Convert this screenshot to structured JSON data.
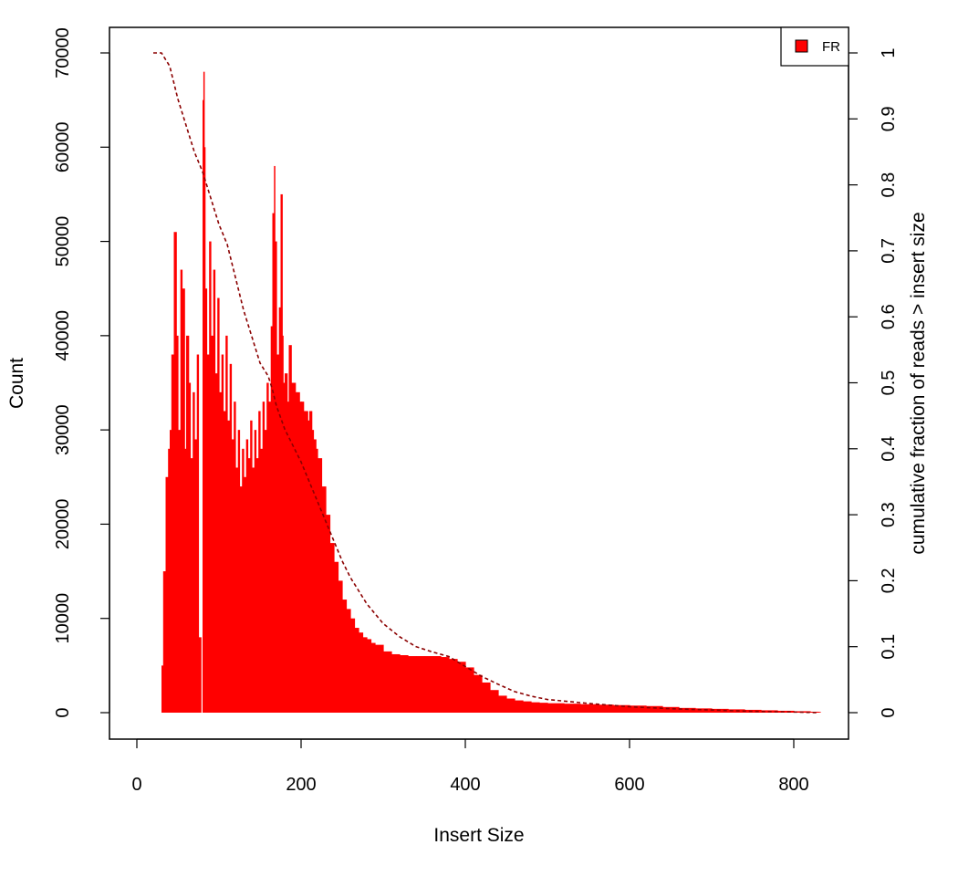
{
  "chart_data": {
    "type": "bar",
    "title": "",
    "xlabel": "Insert Size",
    "ylabel": "Count",
    "y2label": "cumulative fraction of reads > insert size",
    "xlim": [
      0,
      830
    ],
    "ylim": [
      0,
      70000
    ],
    "y2lim": [
      0,
      1
    ],
    "x_ticks": [
      0,
      200,
      400,
      600,
      800
    ],
    "y_ticks": [
      0,
      10000,
      20000,
      30000,
      40000,
      50000,
      60000,
      70000
    ],
    "y2_ticks": [
      0,
      0.1,
      0.2,
      0.3,
      0.4,
      0.5,
      0.6,
      0.7,
      0.8,
      0.9,
      1
    ],
    "grid": false,
    "legend_position": "top-right",
    "colors": {
      "bars": "#ff0000",
      "cumulative_line": "#8b0000",
      "axes": "#000000"
    },
    "series": [
      {
        "name": "FR",
        "kind": "histogram",
        "x": [
          20,
          25,
          30,
          32,
          35,
          38,
          40,
          42,
          45,
          48,
          50,
          53,
          55,
          58,
          60,
          63,
          65,
          68,
          70,
          73,
          75,
          78,
          80,
          81,
          82,
          83,
          85,
          88,
          90,
          93,
          95,
          98,
          100,
          103,
          105,
          108,
          110,
          113,
          115,
          118,
          120,
          123,
          125,
          128,
          130,
          133,
          135,
          138,
          140,
          143,
          145,
          148,
          150,
          153,
          155,
          158,
          160,
          163,
          165,
          167,
          168,
          170,
          173,
          175,
          177,
          178,
          180,
          183,
          185,
          188,
          190,
          193,
          195,
          198,
          200,
          203,
          205,
          208,
          210,
          213,
          215,
          218,
          220,
          225,
          230,
          235,
          240,
          245,
          250,
          255,
          260,
          265,
          270,
          275,
          280,
          285,
          290,
          300,
          310,
          320,
          330,
          340,
          350,
          360,
          370,
          380,
          390,
          400,
          410,
          420,
          430,
          440,
          450,
          460,
          470,
          480,
          490,
          500,
          520,
          540,
          560,
          580,
          600,
          620,
          640,
          660,
          680,
          700,
          720,
          740,
          760,
          780,
          800,
          820,
          830
        ],
        "values": [
          0,
          0,
          5000,
          15000,
          25000,
          28000,
          30000,
          38000,
          51000,
          40000,
          30000,
          47000,
          45000,
          28000,
          40000,
          35000,
          27000,
          34000,
          29000,
          38000,
          8000,
          0,
          65000,
          68000,
          60000,
          45000,
          38000,
          50000,
          40000,
          47000,
          36000,
          44000,
          34000,
          38000,
          32000,
          40000,
          31000,
          37000,
          29000,
          33000,
          26000,
          30000,
          24000,
          28000,
          25000,
          29000,
          27000,
          31000,
          26000,
          30000,
          27000,
          32000,
          28000,
          33000,
          30000,
          35000,
          33000,
          41000,
          53000,
          58000,
          50000,
          38000,
          43000,
          55000,
          40000,
          35000,
          36000,
          33000,
          39000,
          35000,
          35000,
          34000,
          34000,
          33000,
          33000,
          32000,
          32000,
          31000,
          32000,
          30000,
          29000,
          28000,
          27000,
          24000,
          21000,
          18000,
          16000,
          14000,
          12000,
          11000,
          10000,
          9000,
          8500,
          8000,
          7800,
          7400,
          7200,
          6500,
          6200,
          6100,
          6000,
          6000,
          6000,
          6000,
          5900,
          5700,
          5400,
          4800,
          4000,
          3200,
          2400,
          1800,
          1500,
          1300,
          1200,
          1100,
          1050,
          1000,
          950,
          900,
          850,
          800,
          750,
          700,
          600,
          500,
          450,
          400,
          350,
          300,
          250,
          200,
          150,
          100,
          80
        ]
      },
      {
        "name": "cumulative fraction of reads > insert size",
        "kind": "line",
        "axis": "right",
        "x": [
          20,
          30,
          40,
          50,
          60,
          70,
          80,
          90,
          100,
          110,
          120,
          130,
          140,
          150,
          160,
          165,
          170,
          180,
          190,
          200,
          210,
          220,
          230,
          240,
          250,
          260,
          270,
          280,
          290,
          300,
          320,
          340,
          360,
          380,
          400,
          420,
          440,
          460,
          480,
          500,
          550,
          600,
          650,
          700,
          750,
          800,
          830
        ],
        "values": [
          1.0,
          1.0,
          0.98,
          0.93,
          0.89,
          0.85,
          0.82,
          0.78,
          0.74,
          0.71,
          0.66,
          0.61,
          0.57,
          0.53,
          0.51,
          0.49,
          0.465,
          0.43,
          0.405,
          0.38,
          0.35,
          0.32,
          0.29,
          0.26,
          0.23,
          0.205,
          0.185,
          0.165,
          0.15,
          0.135,
          0.115,
          0.1,
          0.092,
          0.085,
          0.07,
          0.055,
          0.043,
          0.032,
          0.025,
          0.02,
          0.014,
          0.009,
          0.006,
          0.004,
          0.002,
          0.001,
          0.0
        ]
      }
    ],
    "legend": [
      {
        "label": "FR",
        "color": "#ff0000"
      }
    ]
  }
}
